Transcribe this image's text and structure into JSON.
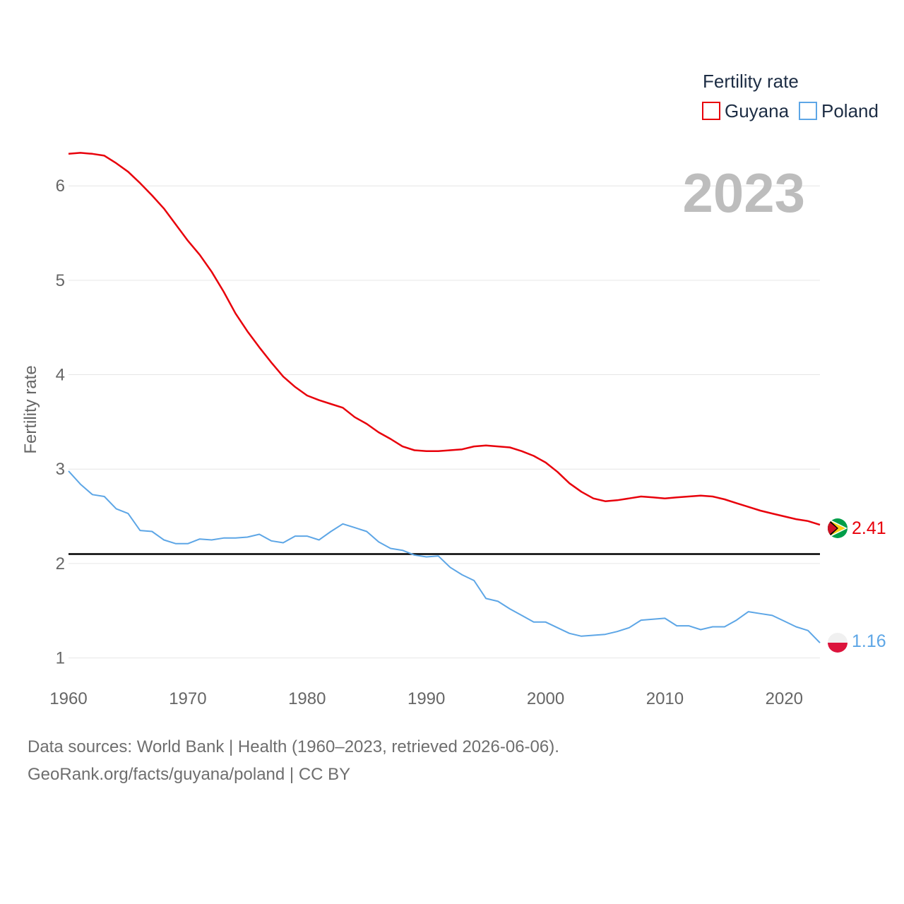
{
  "chart_data": {
    "type": "line",
    "ylabel": "Fertility rate",
    "legend_title": "Fertility rate",
    "legend_position": "top-right",
    "year_label": "2023",
    "x": [
      1960,
      1961,
      1962,
      1963,
      1964,
      1965,
      1966,
      1967,
      1968,
      1969,
      1970,
      1971,
      1972,
      1973,
      1974,
      1975,
      1976,
      1977,
      1978,
      1979,
      1980,
      1981,
      1982,
      1983,
      1984,
      1985,
      1986,
      1987,
      1988,
      1989,
      1990,
      1991,
      1992,
      1993,
      1994,
      1995,
      1996,
      1997,
      1998,
      1999,
      2000,
      2001,
      2002,
      2003,
      2004,
      2005,
      2006,
      2007,
      2008,
      2009,
      2010,
      2011,
      2012,
      2013,
      2014,
      2015,
      2016,
      2017,
      2018,
      2019,
      2020,
      2021,
      2022,
      2023
    ],
    "xlim": [
      1960,
      2023
    ],
    "ylim": [
      0.75,
      6.6
    ],
    "x_ticks": [
      1960,
      1970,
      1980,
      1990,
      2000,
      2010,
      2020
    ],
    "y_ticks": [
      1,
      2,
      3,
      4,
      5,
      6
    ],
    "grid": true,
    "reference_line": 2.1,
    "series": [
      {
        "name": "Guyana",
        "color": "#e8000b",
        "end_label": "2.41",
        "values": [
          6.34,
          6.35,
          6.34,
          6.32,
          6.24,
          6.15,
          6.03,
          5.9,
          5.76,
          5.59,
          5.42,
          5.27,
          5.09,
          4.88,
          4.65,
          4.46,
          4.29,
          4.13,
          3.98,
          3.87,
          3.78,
          3.73,
          3.69,
          3.65,
          3.55,
          3.48,
          3.39,
          3.32,
          3.24,
          3.2,
          3.19,
          3.19,
          3.2,
          3.21,
          3.24,
          3.25,
          3.24,
          3.23,
          3.19,
          3.14,
          3.07,
          2.97,
          2.85,
          2.76,
          2.69,
          2.66,
          2.67,
          2.69,
          2.71,
          2.7,
          2.69,
          2.7,
          2.71,
          2.72,
          2.71,
          2.68,
          2.64,
          2.6,
          2.56,
          2.53,
          2.5,
          2.47,
          2.45,
          2.41
        ]
      },
      {
        "name": "Poland",
        "color": "#5da6e6",
        "end_label": "1.16",
        "values": [
          2.98,
          2.84,
          2.73,
          2.71,
          2.58,
          2.53,
          2.35,
          2.34,
          2.25,
          2.21,
          2.21,
          2.26,
          2.25,
          2.27,
          2.27,
          2.28,
          2.31,
          2.24,
          2.22,
          2.29,
          2.29,
          2.25,
          2.34,
          2.42,
          2.38,
          2.34,
          2.23,
          2.16,
          2.14,
          2.09,
          2.07,
          2.08,
          1.96,
          1.88,
          1.82,
          1.63,
          1.6,
          1.52,
          1.45,
          1.38,
          1.38,
          1.32,
          1.26,
          1.23,
          1.24,
          1.25,
          1.28,
          1.32,
          1.4,
          1.41,
          1.42,
          1.34,
          1.34,
          1.3,
          1.33,
          1.33,
          1.4,
          1.49,
          1.47,
          1.45,
          1.39,
          1.33,
          1.29,
          1.16
        ]
      }
    ]
  },
  "footer": {
    "source_line": "Data sources: World Bank | Health (1960–2023, retrieved 2026-06-06).",
    "attribution_line": "GeoRank.org/facts/guyana/poland | CC BY"
  }
}
